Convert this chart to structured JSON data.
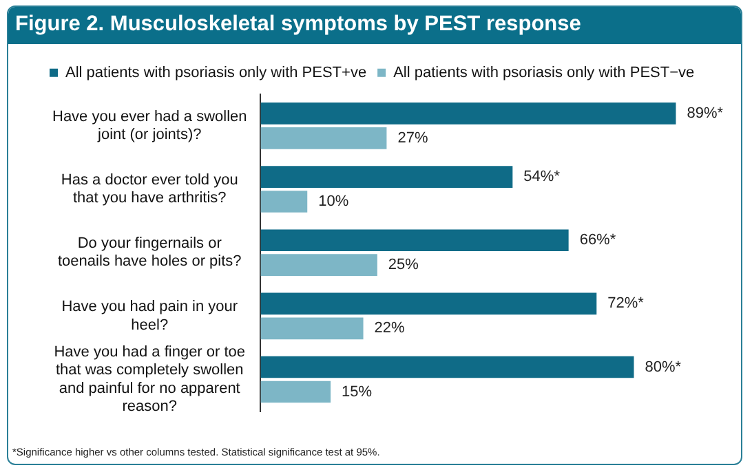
{
  "chart_data": {
    "type": "bar",
    "orientation": "horizontal",
    "title": "Figure 2. Musculoskeletal symptoms by PEST response",
    "categories": [
      "Have you ever had a swollen joint (or joints)?",
      "Has a doctor ever told you that you have arthritis?",
      "Do your fingernails or toenails have holes or pits?",
      "Have you had pain in your heel?",
      "Have you had a finger or toe that was completely swollen and painful for no apparent reason?"
    ],
    "series": [
      {
        "name": "All patients with psoriasis only with PEST+ve",
        "color": "#0f6b87",
        "values": [
          89,
          54,
          66,
          72,
          80
        ],
        "value_labels": [
          "89%*",
          "54%*",
          "66%*",
          "72%*",
          "80%*"
        ]
      },
      {
        "name": "All patients with psoriasis only with PEST−ve",
        "color": "#7db6c6",
        "values": [
          27,
          10,
          25,
          22,
          15
        ],
        "value_labels": [
          "27%",
          "10%",
          "25%",
          "22%",
          "15%"
        ]
      }
    ],
    "legend": "top left",
    "annotations": [
      "*Significance higher vs other columns tested. Statistical significance test at 95%."
    ]
  }
}
